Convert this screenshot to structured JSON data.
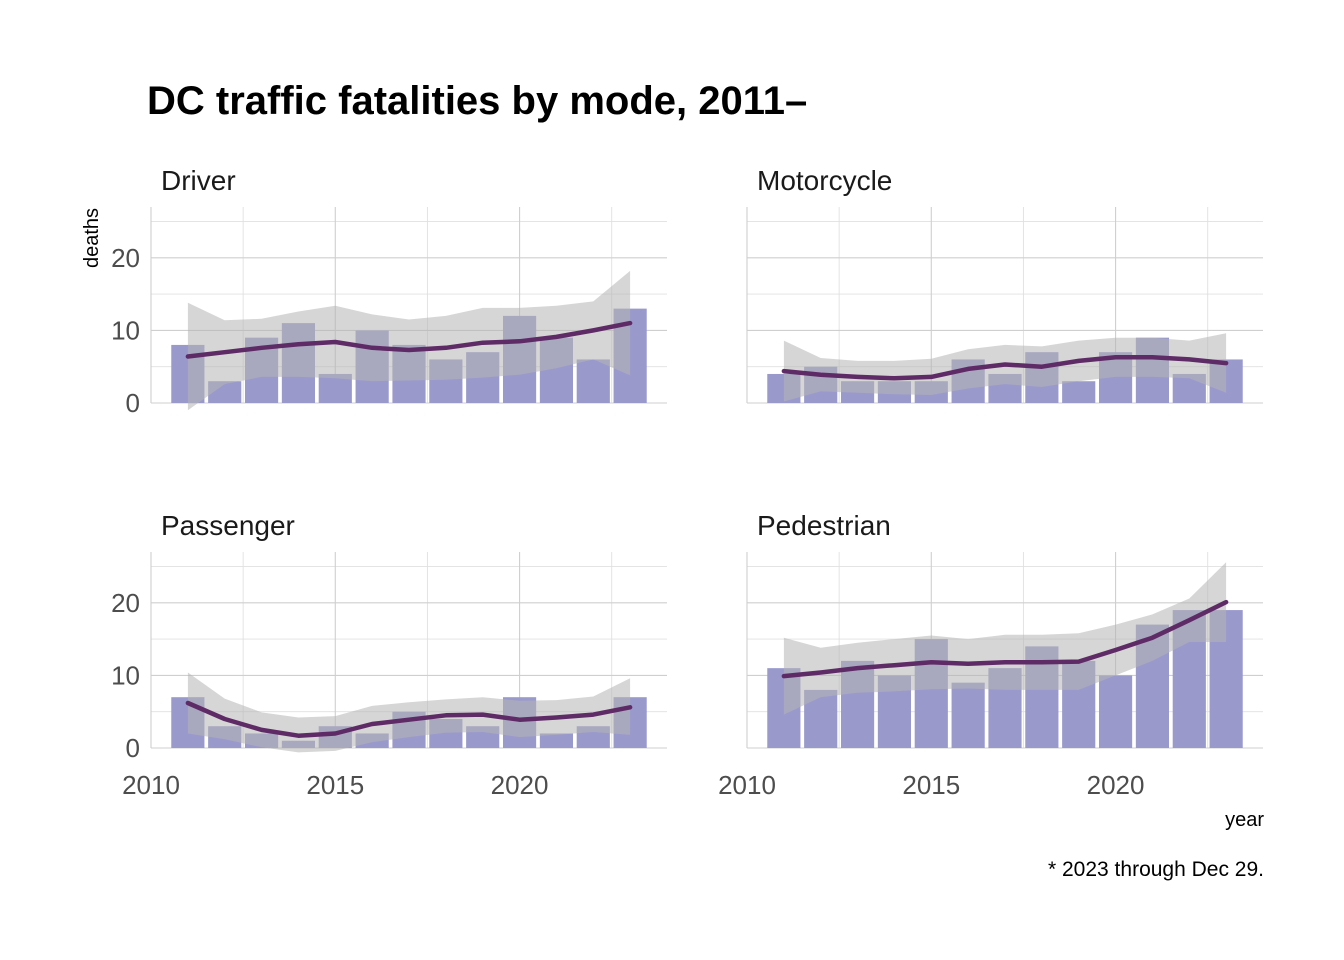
{
  "title": "DC traffic fatalities by mode, 2011–",
  "caption": "* 2023 through Dec 29.",
  "colors": {
    "bar": "#9a99cc",
    "trend": "#5e2b66",
    "band": "#b5b5b5"
  },
  "chart_data": {
    "type": "bar",
    "title": "DC traffic fatalities by mode, 2011–",
    "xlabel": "year",
    "ylabel": "deaths",
    "xlim": [
      2010,
      2024
    ],
    "ylim": [
      0,
      27
    ],
    "x_ticks": [
      "2010",
      "2015",
      "2020"
    ],
    "y_ticks": [
      "0",
      "10",
      "20"
    ],
    "grid": true,
    "overlay": "smoothed trend line with grey confidence band",
    "x": [
      2011,
      2012,
      2013,
      2014,
      2015,
      2016,
      2017,
      2018,
      2019,
      2020,
      2021,
      2022,
      2023
    ],
    "facets": [
      {
        "name": "Driver",
        "values": [
          8,
          3,
          9,
          11,
          4,
          10,
          8,
          6,
          7,
          12,
          9,
          6,
          13
        ],
        "trend": [
          6.4,
          7.0,
          7.6,
          8.1,
          8.4,
          7.6,
          7.3,
          7.6,
          8.3,
          8.5,
          9.1,
          10.0,
          11.0
        ],
        "band_upper": [
          13.8,
          11.4,
          11.6,
          12.6,
          13.4,
          12.2,
          11.5,
          12.0,
          13.1,
          13.1,
          13.4,
          14.0,
          18.2
        ],
        "band_lower": [
          -1.0,
          2.6,
          3.6,
          3.6,
          3.4,
          3.0,
          3.1,
          3.2,
          3.5,
          3.9,
          4.8,
          6.0,
          3.8
        ]
      },
      {
        "name": "Motorcycle",
        "values": [
          4,
          5,
          3,
          3,
          3,
          6,
          4,
          7,
          3,
          7,
          9,
          4,
          6
        ],
        "trend": [
          4.4,
          3.9,
          3.6,
          3.4,
          3.6,
          4.7,
          5.3,
          5.0,
          5.8,
          6.3,
          6.3,
          6.0,
          5.5
        ],
        "band_upper": [
          8.6,
          6.2,
          5.8,
          5.8,
          6.1,
          7.4,
          8.0,
          7.8,
          8.6,
          9.0,
          9.0,
          8.6,
          9.6
        ],
        "band_lower": [
          0.2,
          1.6,
          1.4,
          1.2,
          1.1,
          2.0,
          2.6,
          2.2,
          3.0,
          3.6,
          3.6,
          3.4,
          1.4
        ]
      },
      {
        "name": "Passenger",
        "values": [
          7,
          3,
          2,
          1,
          3,
          2,
          5,
          4,
          3,
          7,
          2,
          3,
          7
        ],
        "trend": [
          6.2,
          4.0,
          2.5,
          1.7,
          2.0,
          3.3,
          3.9,
          4.5,
          4.6,
          3.9,
          4.2,
          4.6,
          5.6
        ],
        "band_upper": [
          10.4,
          6.8,
          4.9,
          4.2,
          4.4,
          5.8,
          6.3,
          6.7,
          7.0,
          6.5,
          6.6,
          7.1,
          9.6
        ],
        "band_lower": [
          2.0,
          1.2,
          0.1,
          -0.6,
          -0.4,
          0.8,
          1.5,
          2.1,
          2.2,
          1.5,
          1.8,
          2.2,
          1.8
        ]
      },
      {
        "name": "Pedestrian",
        "values": [
          11,
          8,
          12,
          10,
          15,
          9,
          11,
          14,
          12,
          10,
          17,
          19,
          19
        ],
        "trend": [
          9.9,
          10.4,
          11.0,
          11.4,
          11.8,
          11.6,
          11.8,
          11.8,
          11.9,
          13.5,
          15.2,
          17.6,
          20.1
        ],
        "band_upper": [
          15.2,
          13.8,
          14.5,
          15.0,
          15.5,
          15.0,
          15.6,
          15.6,
          15.8,
          17.0,
          18.4,
          20.6,
          25.6
        ],
        "band_lower": [
          4.6,
          7.0,
          7.6,
          7.8,
          8.1,
          8.2,
          8.0,
          8.0,
          8.0,
          10.0,
          12.0,
          14.6,
          14.6
        ]
      }
    ]
  }
}
